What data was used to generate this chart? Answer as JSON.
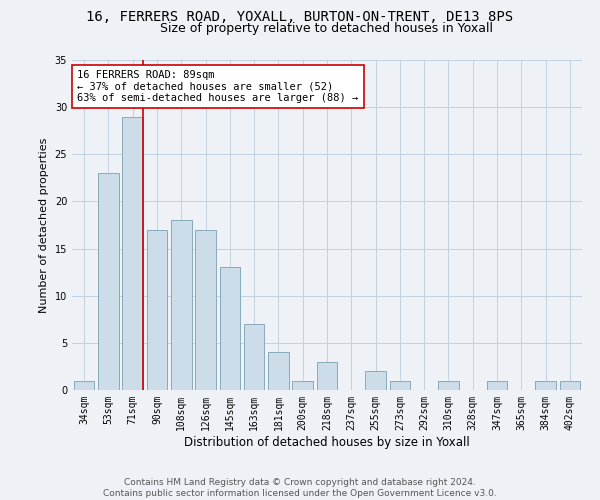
{
  "title": "16, FERRERS ROAD, YOXALL, BURTON-ON-TRENT, DE13 8PS",
  "subtitle": "Size of property relative to detached houses in Yoxall",
  "xlabel": "Distribution of detached houses by size in Yoxall",
  "ylabel": "Number of detached properties",
  "categories": [
    "34sqm",
    "53sqm",
    "71sqm",
    "90sqm",
    "108sqm",
    "126sqm",
    "145sqm",
    "163sqm",
    "181sqm",
    "200sqm",
    "218sqm",
    "237sqm",
    "255sqm",
    "273sqm",
    "292sqm",
    "310sqm",
    "328sqm",
    "347sqm",
    "365sqm",
    "384sqm",
    "402sqm"
  ],
  "values": [
    1,
    23,
    29,
    17,
    18,
    17,
    13,
    7,
    4,
    1,
    3,
    0,
    2,
    1,
    0,
    1,
    0,
    1,
    0,
    1,
    1
  ],
  "bar_color": "#ccdce8",
  "bar_edge_color": "#88aabb",
  "highlight_bar_index": 2,
  "highlight_color": "#cc0000",
  "ylim": [
    0,
    35
  ],
  "yticks": [
    0,
    5,
    10,
    15,
    20,
    25,
    30,
    35
  ],
  "annotation_text": "16 FERRERS ROAD: 89sqm\n← 37% of detached houses are smaller (52)\n63% of semi-detached houses are larger (88) →",
  "annotation_box_color": "#ffffff",
  "annotation_box_edge_color": "#cc0000",
  "footer_line1": "Contains HM Land Registry data © Crown copyright and database right 2024.",
  "footer_line2": "Contains public sector information licensed under the Open Government Licence v3.0.",
  "background_color": "#eef2f7",
  "grid_color": "#bbccdd",
  "title_fontsize": 10,
  "subtitle_fontsize": 9,
  "xlabel_fontsize": 8.5,
  "ylabel_fontsize": 8,
  "tick_fontsize": 7,
  "annotation_fontsize": 7.5,
  "footer_fontsize": 6.5
}
